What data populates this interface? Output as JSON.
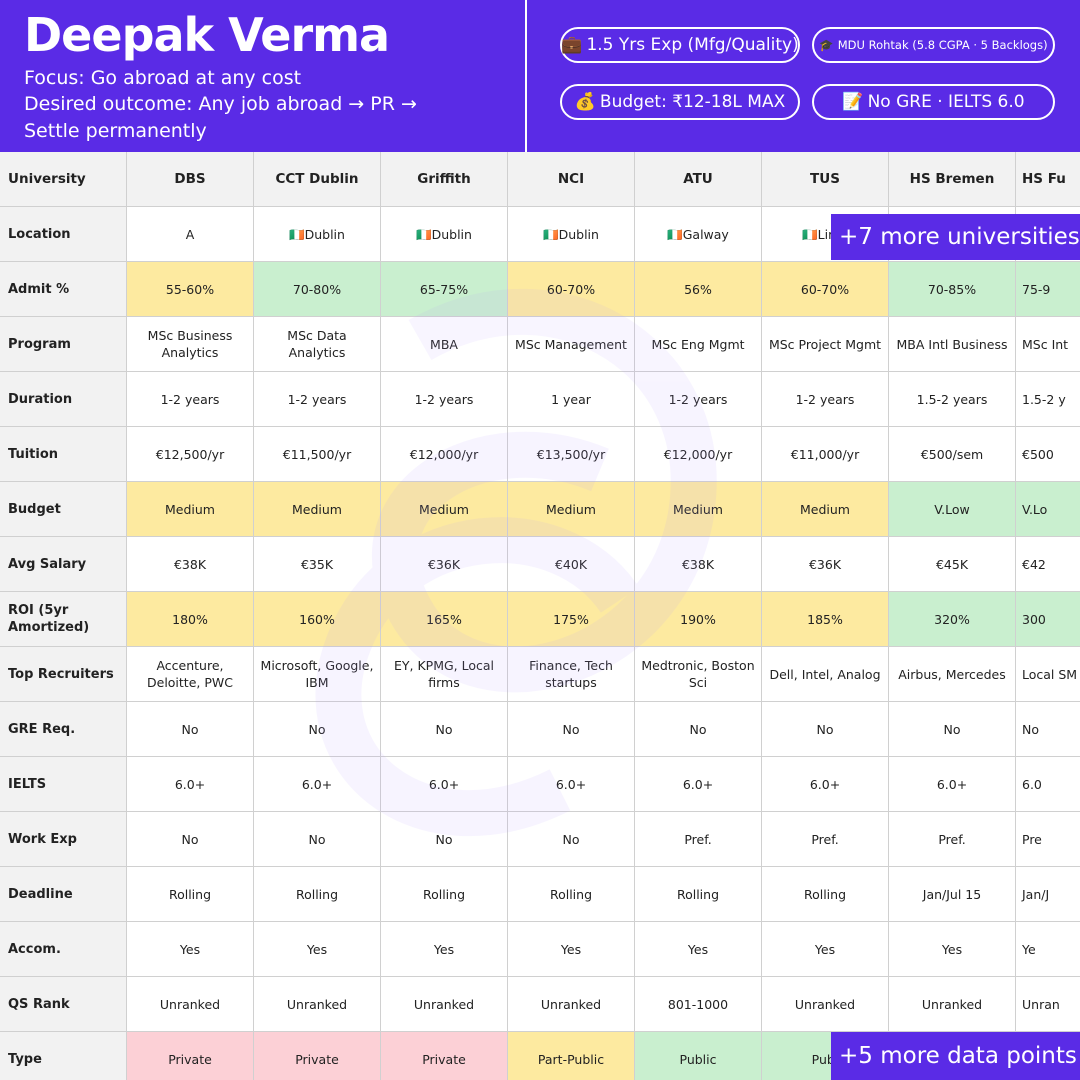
{
  "header": {
    "name": "Deepak Verma",
    "focus": "Focus: Go abroad at any cost",
    "desired_1": "Desired outcome: Any job abroad → PR →",
    "desired_2": "Settle permanently",
    "pills": [
      {
        "icon": "💼",
        "icon_name": "briefcase-icon",
        "label": "1.5 Yrs Exp (Mfg/Quality)"
      },
      {
        "icon": "🎓",
        "icon_name": "graduation-cap-icon",
        "label": "MDU Rohtak (5.8 CGPA · 5 Backlogs)"
      },
      {
        "icon": "💰",
        "icon_name": "money-bag-icon",
        "label": "Budget: ₹12-18L MAX"
      },
      {
        "icon": "📝",
        "icon_name": "memo-icon",
        "label": "No GRE · IELTS 6.0"
      }
    ]
  },
  "colors": {
    "brand": "#5a2be6",
    "yellow": "#fdeaa0",
    "green": "#c9efcf",
    "pink": "#fcd0d6",
    "white": "#ffffff"
  },
  "table": {
    "columns": [
      "University",
      "DBS",
      "CCT Dublin",
      "Griffith",
      "NCI",
      "ATU",
      "TUS",
      "HS Bremen",
      "HS Fu"
    ],
    "rows": [
      {
        "label": "Location",
        "cells": [
          "A",
          "🇮🇪Dublin",
          "🇮🇪Dublin",
          "🇮🇪Dublin",
          "🇮🇪Galway",
          "🇮🇪Lime",
          "",
          ""
        ],
        "tints": [
          "white",
          "white",
          "white",
          "white",
          "white",
          "white",
          "white",
          "white"
        ]
      },
      {
        "label": "Admit %",
        "cells": [
          "55-60%",
          "70-80%",
          "65-75%",
          "60-70%",
          "56%",
          "60-70%",
          "70-85%",
          "75-9"
        ],
        "tints": [
          "yellow",
          "green",
          "green",
          "yellow",
          "yellow",
          "yellow",
          "green",
          "green"
        ]
      },
      {
        "label": "Program",
        "cells": [
          "MSc Business Analytics",
          "MSc Data Analytics",
          "MBA",
          "MSc Management",
          "MSc Eng Mgmt",
          "MSc Project Mgmt",
          "MBA Intl Business",
          "MSc Int"
        ],
        "tints": [
          "white",
          "white",
          "white",
          "white",
          "white",
          "white",
          "white",
          "white"
        ]
      },
      {
        "label": "Duration",
        "cells": [
          "1-2 years",
          "1-2 years",
          "1-2 years",
          "1 year",
          "1-2 years",
          "1-2 years",
          "1.5-2 years",
          "1.5-2 y"
        ],
        "tints": [
          "white",
          "white",
          "white",
          "white",
          "white",
          "white",
          "white",
          "white"
        ]
      },
      {
        "label": "Tuition",
        "cells": [
          "€12,500/yr",
          "€11,500/yr",
          "€12,000/yr",
          "€13,500/yr",
          "€12,000/yr",
          "€11,000/yr",
          "€500/sem",
          "€500"
        ],
        "tints": [
          "white",
          "white",
          "white",
          "white",
          "white",
          "white",
          "white",
          "white"
        ]
      },
      {
        "label": "Budget",
        "cells": [
          "Medium",
          "Medium",
          "Medium",
          "Medium",
          "Medium",
          "Medium",
          "V.Low",
          "V.Lo"
        ],
        "tints": [
          "yellow",
          "yellow",
          "yellow",
          "yellow",
          "yellow",
          "yellow",
          "green",
          "green"
        ]
      },
      {
        "label": "Avg Salary",
        "cells": [
          "€38K",
          "€35K",
          "€36K",
          "€40K",
          "€38K",
          "€36K",
          "€45K",
          "€42"
        ],
        "tints": [
          "white",
          "white",
          "white",
          "white",
          "white",
          "white",
          "white",
          "white"
        ]
      },
      {
        "label": "ROI (5yr Amortized)",
        "cells": [
          "180%",
          "160%",
          "165%",
          "175%",
          "190%",
          "185%",
          "320%",
          "300"
        ],
        "tints": [
          "yellow",
          "yellow",
          "yellow",
          "yellow",
          "yellow",
          "yellow",
          "green",
          "green"
        ]
      },
      {
        "label": "Top Recruiters",
        "cells": [
          "Accenture, Deloitte, PWC",
          "Microsoft, Google, IBM",
          "EY, KPMG, Local firms",
          "Finance, Tech startups",
          "Medtronic, Boston Sci",
          "Dell, Intel, Analog",
          "Airbus, Mercedes",
          "Local SM"
        ],
        "tints": [
          "white",
          "white",
          "white",
          "white",
          "white",
          "white",
          "white",
          "white"
        ]
      },
      {
        "label": "GRE Req.",
        "cells": [
          "No",
          "No",
          "No",
          "No",
          "No",
          "No",
          "No",
          "No"
        ],
        "tints": [
          "white",
          "white",
          "white",
          "white",
          "white",
          "white",
          "white",
          "white"
        ]
      },
      {
        "label": "IELTS",
        "cells": [
          "6.0+",
          "6.0+",
          "6.0+",
          "6.0+",
          "6.0+",
          "6.0+",
          "6.0+",
          "6.0"
        ],
        "tints": [
          "white",
          "white",
          "white",
          "white",
          "white",
          "white",
          "white",
          "white"
        ]
      },
      {
        "label": "Work Exp",
        "cells": [
          "No",
          "No",
          "No",
          "No",
          "Pref.",
          "Pref.",
          "Pref.",
          "Pre"
        ],
        "tints": [
          "white",
          "white",
          "white",
          "white",
          "white",
          "white",
          "white",
          "white"
        ]
      },
      {
        "label": "Deadline",
        "cells": [
          "Rolling",
          "Rolling",
          "Rolling",
          "Rolling",
          "Rolling",
          "Rolling",
          "Jan/Jul 15",
          "Jan/J"
        ],
        "tints": [
          "white",
          "white",
          "white",
          "white",
          "white",
          "white",
          "white",
          "white"
        ]
      },
      {
        "label": "Accom.",
        "cells": [
          "Yes",
          "Yes",
          "Yes",
          "Yes",
          "Yes",
          "Yes",
          "Yes",
          "Ye"
        ],
        "tints": [
          "white",
          "white",
          "white",
          "white",
          "white",
          "white",
          "white",
          "white"
        ]
      },
      {
        "label": "QS Rank",
        "cells": [
          "Unranked",
          "Unranked",
          "Unranked",
          "Unranked",
          "801-1000",
          "Unranked",
          "Unranked",
          "Unran"
        ],
        "tints": [
          "white",
          "white",
          "white",
          "white",
          "white",
          "white",
          "white",
          "white"
        ]
      },
      {
        "label": "Type",
        "cells": [
          "Private",
          "Private",
          "Private",
          "Part-Public",
          "Public",
          "Publ",
          "",
          ""
        ],
        "tints": [
          "pink",
          "pink",
          "pink",
          "yellow",
          "green",
          "green",
          "white",
          "white"
        ]
      }
    ]
  },
  "overlays": {
    "more_universities": "+7 more universities",
    "more_data_points": "+5 more data points"
  }
}
